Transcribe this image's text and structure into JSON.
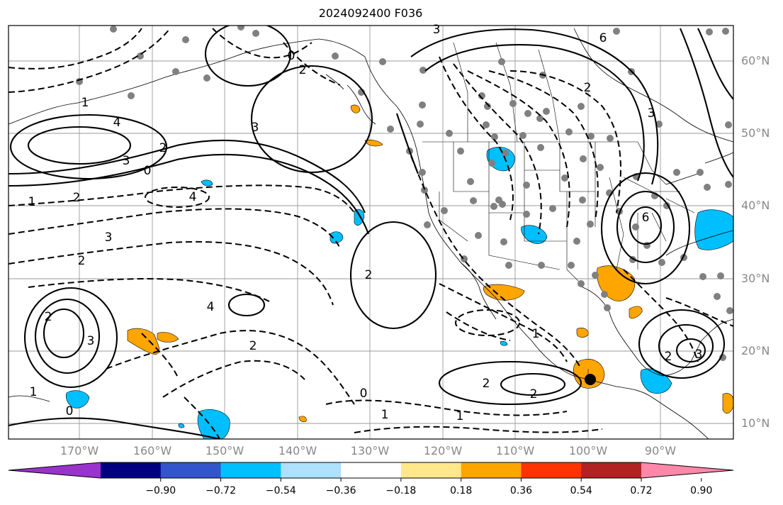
{
  "title": "2024092400 F036",
  "lat_labels": [
    "60°N",
    "50°N",
    "40°N",
    "30°N",
    "20°N",
    "10°N"
  ],
  "lon_labels": [
    "170°W",
    "160°W",
    "150°W",
    "140°W",
    "130°W",
    "120°W",
    "110°W",
    "100°W",
    "90°W"
  ],
  "colorbar": {
    "ticks": [
      "−0.90",
      "−0.72",
      "−0.54",
      "−0.36",
      "−0.18",
      "0.18",
      "0.36",
      "0.54",
      "0.72",
      "0.90"
    ],
    "colors": [
      "#9933cc",
      "#000080",
      "#3355cc",
      "#00bfff",
      "#aee0ff",
      "#ffffff",
      "#ffe88a",
      "#ffa500",
      "#ff3300",
      "#b22222",
      "#ff88aa"
    ]
  },
  "contour_labels": [
    "4",
    "3",
    "2",
    "1",
    "0",
    "1",
    "2",
    "4",
    "3",
    "2",
    "3",
    "2",
    "1",
    "0",
    "2",
    "3",
    "4",
    "6",
    "2",
    "1",
    "0",
    "2",
    "2",
    "3",
    "0",
    "1",
    "2",
    "3",
    "2",
    "3",
    "6",
    "1",
    "2"
  ]
}
